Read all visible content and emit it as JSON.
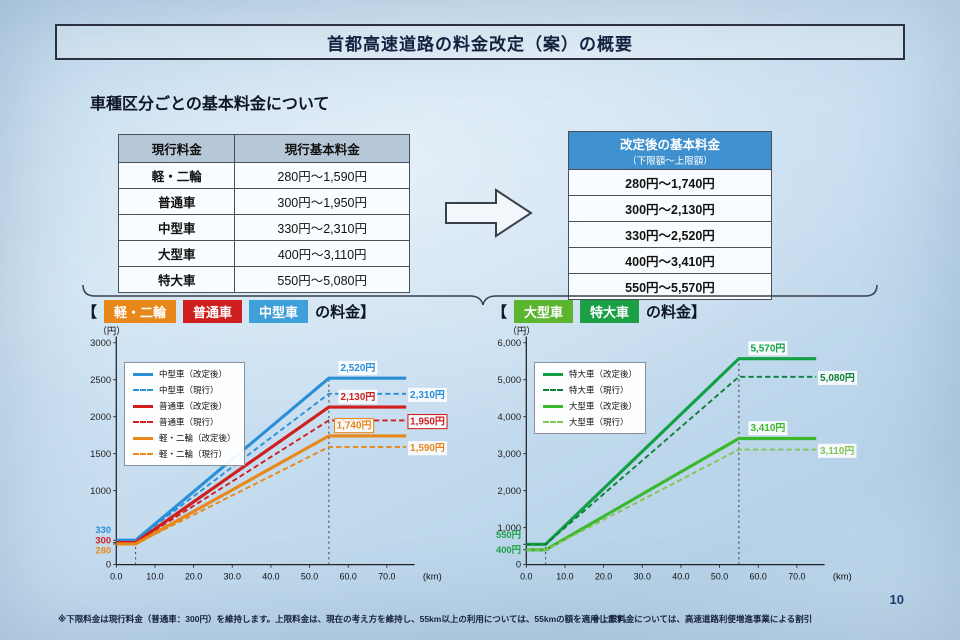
{
  "page": {
    "title": "首都高速道路の料金改定（案）の概要",
    "subtitle": "車種区分ごとの基本料金について",
    "page_number": "10",
    "footnote_left": "※下限料金は現行料金（普通車：300円）を維持します。上限料金は、現在の考え方を維持し、55km以上の利用については、55kmの額を適用します。",
    "footnote_right": "※上限料金については、高速道路利便増進事業による割引"
  },
  "current_table": {
    "headers": [
      "現行料金",
      "現行基本料金"
    ],
    "header_bg": "#b6c8d8",
    "rows": [
      {
        "category": "軽・二輪",
        "range": "280円～1,590円"
      },
      {
        "category": "普通車",
        "range": "300円～1,950円"
      },
      {
        "category": "中型車",
        "range": "330円～2,310円"
      },
      {
        "category": "大型車",
        "range": "400円～3,110円"
      },
      {
        "category": "特大車",
        "range": "550円～5,080円"
      }
    ]
  },
  "revised_table": {
    "header_line1": "改定後の基本料金",
    "header_line2": "（下限額～上限額）",
    "header_bg": "#3f90cf",
    "rows": [
      "280円～1,740円",
      "300円～2,130円",
      "330円～2,520円",
      "400円～3,410円",
      "550円～5,570円"
    ]
  },
  "sections": {
    "left": {
      "open": "【",
      "suffix": "の料金】",
      "badges": [
        {
          "label": "軽・二輪",
          "color": "#e8871a"
        },
        {
          "label": "普通車",
          "color": "#cf1f1f"
        },
        {
          "label": "中型車",
          "color": "#3f9fd8"
        }
      ]
    },
    "right": {
      "open": "【",
      "suffix": "の料金】",
      "badges": [
        {
          "label": "大型車",
          "color": "#5cb52e"
        },
        {
          "label": "特大車",
          "color": "#1ba046"
        }
      ]
    }
  },
  "chart_data": [
    {
      "type": "line",
      "title": "軽・二輪／普通車／中型車の料金",
      "x_unit": "(km)",
      "y_unit": "（円）",
      "xlabel": "km",
      "ylabel": "円",
      "xlim": [
        0,
        75
      ],
      "ylim": [
        0,
        3000
      ],
      "grid": false,
      "legend_position": "top-left",
      "xticks": [
        {
          "value": 0,
          "label": "0.0"
        },
        {
          "value": 10,
          "label": "10.0"
        },
        {
          "value": 20,
          "label": "20.0"
        },
        {
          "value": 30,
          "label": "30.0"
        },
        {
          "value": 40,
          "label": "40.0"
        },
        {
          "value": 50,
          "label": "50.0"
        },
        {
          "value": 60,
          "label": "60.0"
        },
        {
          "value": 70,
          "label": "70.0"
        }
      ],
      "yticks": [
        {
          "value": 3000,
          "label": "3000",
          "color": "#222"
        },
        {
          "value": 2500,
          "label": "2500",
          "color": "#222"
        },
        {
          "value": 2000,
          "label": "2000",
          "color": "#222"
        },
        {
          "value": 1500,
          "label": "1500",
          "color": "#222"
        },
        {
          "value": 1000,
          "label": "1000",
          "color": "#222"
        },
        {
          "value": 330,
          "label": "330",
          "color": "#2b8fd8",
          "dy": -10
        },
        {
          "value": 300,
          "label": "300",
          "color": "#cf1f1f",
          "dy": -2
        },
        {
          "value": 280,
          "label": "280",
          "color": "#e8871a",
          "dy": 6
        },
        {
          "value": 0,
          "label": "0",
          "color": "#222"
        }
      ],
      "guide_x": [
        5,
        55
      ],
      "series": [
        {
          "name": "中型車（改定後）",
          "color": "#2b8fd8",
          "dash": false,
          "width": 3,
          "points": [
            [
              0,
              330
            ],
            [
              5,
              330
            ],
            [
              55,
              2520
            ],
            [
              75,
              2520
            ]
          ],
          "label": {
            "text": "2,520円",
            "x": 58,
            "y": 2520,
            "dy": -7,
            "anchor": "start",
            "boxed": false
          }
        },
        {
          "name": "中型車（現行）",
          "color": "#2b8fd8",
          "dash": true,
          "width": 1.8,
          "points": [
            [
              0,
              330
            ],
            [
              5,
              330
            ],
            [
              55,
              2310
            ],
            [
              75,
              2310
            ]
          ],
          "label": {
            "text": "2,310円",
            "x": 76,
            "y": 2310,
            "dy": 4,
            "anchor": "start",
            "boxed": false
          }
        },
        {
          "name": "普通車（改定後）",
          "color": "#cf1f1f",
          "dash": false,
          "width": 3,
          "points": [
            [
              0,
              300
            ],
            [
              5,
              300
            ],
            [
              55,
              2130
            ],
            [
              75,
              2130
            ]
          ],
          "label": {
            "text": "2,130円",
            "x": 58,
            "y": 2130,
            "dy": -7,
            "anchor": "start",
            "boxed": false
          }
        },
        {
          "name": "普通車（現行）",
          "color": "#cf1f1f",
          "dash": true,
          "width": 1.8,
          "points": [
            [
              0,
              300
            ],
            [
              5,
              300
            ],
            [
              55,
              1950
            ],
            [
              75,
              1950
            ]
          ],
          "label": {
            "text": "1,950円",
            "x": 76,
            "y": 1950,
            "dy": 4,
            "anchor": "start",
            "boxed": true
          }
        },
        {
          "name": "軽・二輪（改定後）",
          "color": "#e8871a",
          "dash": false,
          "width": 3,
          "points": [
            [
              0,
              280
            ],
            [
              5,
              280
            ],
            [
              55,
              1740
            ],
            [
              75,
              1740
            ]
          ],
          "label": {
            "text": "1,740円",
            "x": 57,
            "y": 1740,
            "dy": -7,
            "anchor": "start",
            "boxed": true
          }
        },
        {
          "name": "軽・二輪（現行）",
          "color": "#e8871a",
          "dash": true,
          "width": 1.8,
          "points": [
            [
              0,
              280
            ],
            [
              5,
              280
            ],
            [
              55,
              1590
            ],
            [
              75,
              1590
            ]
          ],
          "label": {
            "text": "1,590円",
            "x": 76,
            "y": 1590,
            "dy": 4,
            "anchor": "start",
            "boxed": false
          }
        }
      ]
    },
    {
      "type": "line",
      "title": "大型車／特大車の料金",
      "x_unit": "(km)",
      "y_unit": "（円）",
      "xlabel": "km",
      "ylabel": "円",
      "xlim": [
        0,
        75
      ],
      "ylim": [
        0,
        6000
      ],
      "grid": false,
      "legend_position": "top-left",
      "xticks": [
        {
          "value": 0,
          "label": "0.0"
        },
        {
          "value": 10,
          "label": "10.0"
        },
        {
          "value": 20,
          "label": "20.0"
        },
        {
          "value": 30,
          "label": "30.0"
        },
        {
          "value": 40,
          "label": "40.0"
        },
        {
          "value": 50,
          "label": "50.0"
        },
        {
          "value": 60,
          "label": "60.0"
        },
        {
          "value": 70,
          "label": "70.0"
        }
      ],
      "yticks": [
        {
          "value": 6000,
          "label": "6,000",
          "color": "#222"
        },
        {
          "value": 5000,
          "label": "5,000",
          "color": "#222"
        },
        {
          "value": 4000,
          "label": "4,000",
          "color": "#222"
        },
        {
          "value": 3000,
          "label": "3,000",
          "color": "#222"
        },
        {
          "value": 2000,
          "label": "2,000",
          "color": "#222"
        },
        {
          "value": 1000,
          "label": "1,000",
          "color": "#222"
        },
        {
          "value": 550,
          "label": "550円",
          "color": "#1ba046",
          "dy": -9
        },
        {
          "value": 400,
          "label": "400円",
          "color": "#1ba046",
          "dy": 0
        },
        {
          "value": 0,
          "label": "0",
          "color": "#222"
        }
      ],
      "guide_x": [
        5,
        55
      ],
      "series": [
        {
          "name": "特大車（改定後）",
          "color": "#12a044",
          "dash": false,
          "width": 3,
          "points": [
            [
              0,
              550
            ],
            [
              5,
              550
            ],
            [
              55,
              5570
            ],
            [
              75,
              5570
            ]
          ],
          "label": {
            "text": "5,570円",
            "x": 58,
            "y": 5570,
            "dy": -7,
            "anchor": "start",
            "boxed": false
          }
        },
        {
          "name": "特大車（現行）",
          "color": "#0d8038",
          "dash": true,
          "width": 1.8,
          "points": [
            [
              0,
              550
            ],
            [
              5,
              550
            ],
            [
              55,
              5080
            ],
            [
              75,
              5080
            ]
          ],
          "label": {
            "text": "5,080円",
            "x": 76,
            "y": 5080,
            "dy": 4,
            "anchor": "start",
            "boxed": false
          }
        },
        {
          "name": "大型車（改定後）",
          "color": "#3cb82f",
          "dash": false,
          "width": 3,
          "points": [
            [
              0,
              400
            ],
            [
              5,
              400
            ],
            [
              55,
              3410
            ],
            [
              75,
              3410
            ]
          ],
          "label": {
            "text": "3,410円",
            "x": 58,
            "y": 3410,
            "dy": -7,
            "anchor": "start",
            "boxed": false
          }
        },
        {
          "name": "大型車（現行）",
          "color": "#85c453",
          "dash": true,
          "width": 1.8,
          "points": [
            [
              0,
              400
            ],
            [
              5,
              400
            ],
            [
              55,
              3110
            ],
            [
              75,
              3110
            ]
          ],
          "label": {
            "text": "3,110円",
            "x": 76,
            "y": 3110,
            "dy": 4,
            "anchor": "start",
            "boxed": false
          }
        }
      ]
    }
  ]
}
